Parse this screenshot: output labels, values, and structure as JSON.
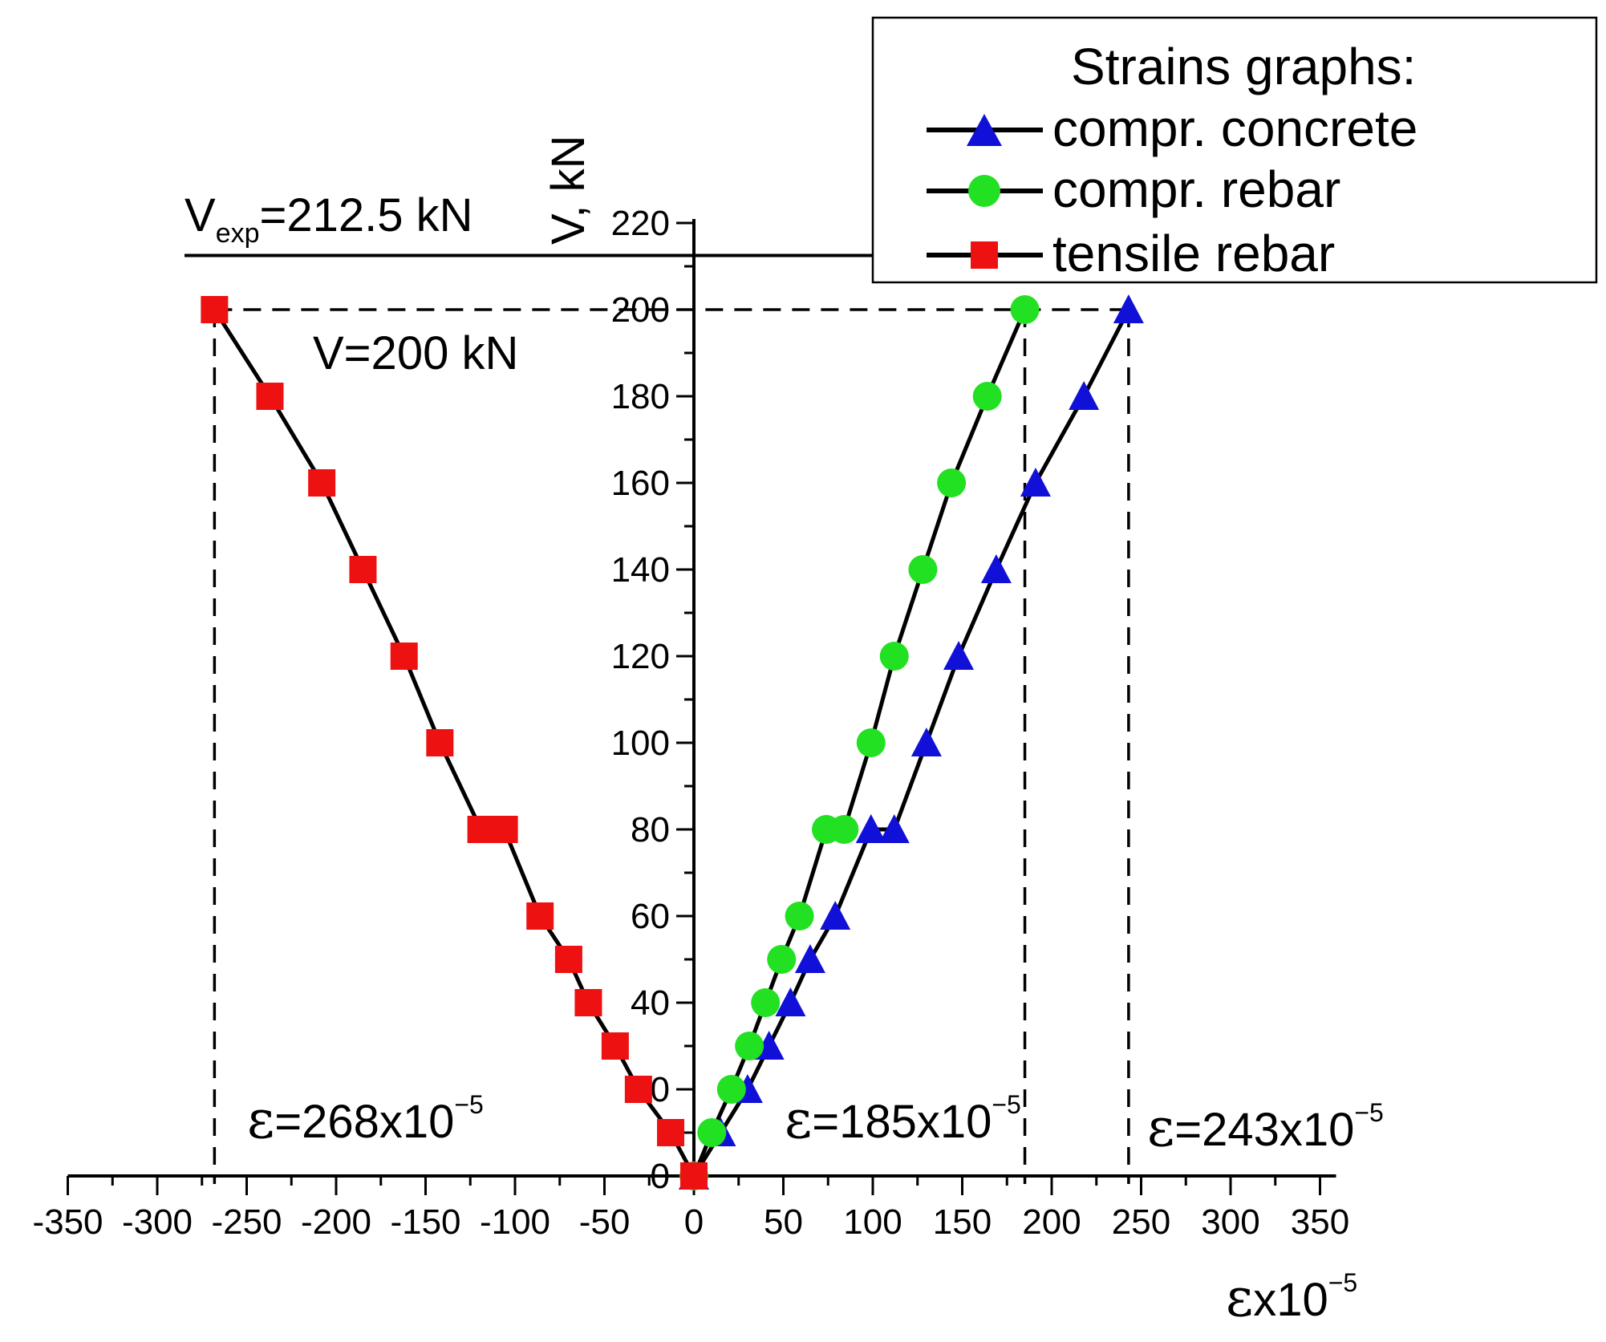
{
  "chart_data": {
    "type": "line",
    "xlabel": "εx10⁻⁵",
    "ylabel": "V, kN",
    "xlim": [
      -350,
      350
    ],
    "ylim": [
      0,
      220
    ],
    "xticks": [
      -350,
      -300,
      -250,
      -200,
      -150,
      -100,
      -50,
      0,
      50,
      100,
      150,
      200,
      250,
      300,
      350
    ],
    "yticks": [
      0,
      20,
      40,
      60,
      80,
      100,
      120,
      140,
      160,
      180,
      200,
      220
    ],
    "legend": {
      "title": "Strains graphs:",
      "position": "top-right",
      "entries": [
        "compr. concrete",
        "compr. rebar",
        "tensile rebar"
      ]
    },
    "series": [
      {
        "name": "compr. concrete",
        "marker": "triangle",
        "color": "#1010d8",
        "points": [
          [
            0,
            0
          ],
          [
            15,
            10
          ],
          [
            30,
            20
          ],
          [
            42,
            30
          ],
          [
            54,
            40
          ],
          [
            65,
            50
          ],
          [
            79,
            60
          ],
          [
            99,
            80
          ],
          [
            112,
            80
          ],
          [
            130,
            100
          ],
          [
            148,
            120
          ],
          [
            169,
            140
          ],
          [
            191,
            160
          ],
          [
            218,
            180
          ],
          [
            243,
            200
          ]
        ]
      },
      {
        "name": "compr. rebar",
        "marker": "circle",
        "color": "#22e022",
        "points": [
          [
            0,
            0
          ],
          [
            10,
            10
          ],
          [
            21,
            20
          ],
          [
            31,
            30
          ],
          [
            40,
            40
          ],
          [
            49,
            50
          ],
          [
            59,
            60
          ],
          [
            74,
            80
          ],
          [
            84,
            80
          ],
          [
            99,
            100
          ],
          [
            112,
            120
          ],
          [
            128,
            140
          ],
          [
            144,
            160
          ],
          [
            164,
            180
          ],
          [
            185,
            200
          ]
        ]
      },
      {
        "name": "tensile rebar",
        "marker": "square",
        "color": "#ee1111",
        "points": [
          [
            0,
            0
          ],
          [
            -13,
            10
          ],
          [
            -31,
            20
          ],
          [
            -44,
            30
          ],
          [
            -59,
            40
          ],
          [
            -70,
            50
          ],
          [
            -86,
            60
          ],
          [
            -106,
            80
          ],
          [
            -119,
            80
          ],
          [
            -142,
            100
          ],
          [
            -162,
            120
          ],
          [
            -185,
            140
          ],
          [
            -208,
            160
          ],
          [
            -237,
            180
          ],
          [
            -268,
            200
          ]
        ]
      }
    ],
    "reference_lines": [
      {
        "type": "horizontal",
        "value": 212.5,
        "style": "solid"
      },
      {
        "type": "horizontal",
        "value": 200,
        "style": "dashed"
      },
      {
        "type": "vertical",
        "value": -268,
        "style": "dashed"
      },
      {
        "type": "vertical",
        "value": 185,
        "style": "dashed"
      },
      {
        "type": "vertical",
        "value": 243,
        "style": "dashed"
      }
    ],
    "annotations": {
      "vexp": {
        "main": "V",
        "sub": "exp",
        "rest": "=212.5 kN"
      },
      "v200": "V=200 kN",
      "eps_tensile": {
        "eps": "ε",
        "main": "=268x10",
        "sup": "−5"
      },
      "eps_rebar": {
        "eps": "ε",
        "main": "=185x10",
        "sup": "−5"
      },
      "eps_concrete": {
        "eps": "ε",
        "main": "=243x10",
        "sup": "−5"
      }
    }
  }
}
